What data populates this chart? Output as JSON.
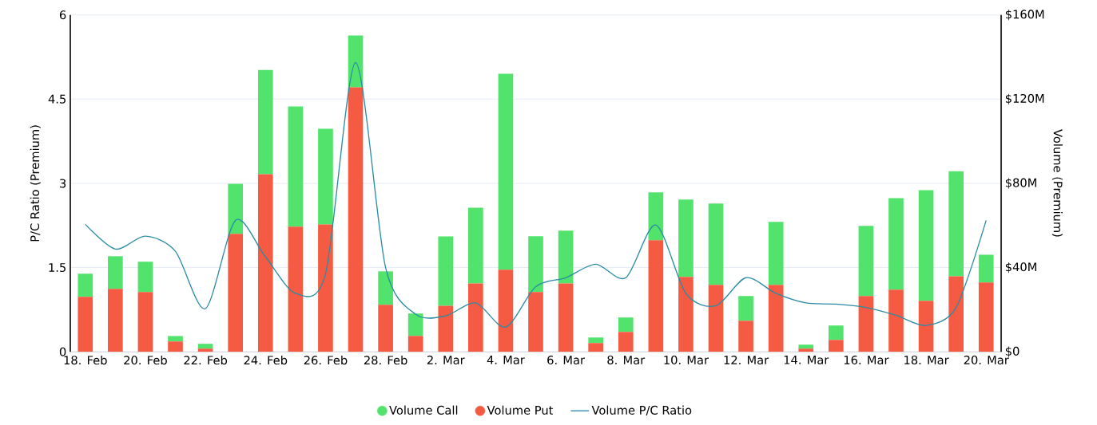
{
  "chart_data": {
    "type": "bar",
    "stacked": true,
    "ylabel": "P/C Ratio (Premium)",
    "y2label": "Volume (Premium)",
    "categories": [
      "18. Feb",
      null,
      "20. Feb",
      null,
      "22. Feb",
      null,
      "24. Feb",
      null,
      "26. Feb",
      null,
      "28. Feb",
      null,
      "2. Mar",
      null,
      "4. Mar",
      null,
      "6. Mar",
      null,
      "8. Mar",
      null,
      "10. Mar",
      null,
      "12. Mar",
      null,
      "14. Mar",
      null,
      "16. Mar",
      null,
      "18. Mar",
      null,
      "20. Mar"
    ],
    "series": [
      {
        "name": "Volume Put",
        "color": "#f45b42",
        "axis": "y2",
        "values": [
          26.1,
          29.9,
          28.4,
          4.9,
          1.5,
          56,
          84.3,
          59.4,
          60.5,
          125.6,
          22.3,
          7.6,
          21.9,
          32.5,
          39,
          28.4,
          32.5,
          4.2,
          9.5,
          53,
          35.6,
          31.8,
          14.8,
          31.8,
          1.5,
          5.7,
          26.5,
          29.5,
          24.2,
          35.9,
          32.9
        ]
      },
      {
        "name": "Volume Call",
        "color": "#52e36c",
        "axis": "y2",
        "values": [
          11.0,
          15.5,
          14.4,
          2.6,
          2.3,
          23.8,
          49.5,
          57.1,
          45.4,
          24.6,
          15.9,
          10.6,
          32.9,
          35.9,
          93,
          26.5,
          25,
          2.6,
          6.8,
          22.7,
          36.7,
          38.6,
          11.7,
          29.9,
          1.9,
          6.8,
          33.3,
          43.5,
          52.6,
          49.9,
          13.2
        ]
      },
      {
        "name": "Volume P/C Ratio",
        "type": "line",
        "color": "#2a8ca5",
        "axis": "y",
        "values": [
          2.27,
          1.83,
          2.06,
          1.79,
          0.77,
          2.34,
          1.69,
          1.04,
          1.39,
          5.15,
          1.5,
          0.67,
          0.64,
          0.87,
          0.44,
          1.16,
          1.32,
          1.56,
          1.32,
          2.26,
          1.04,
          0.82,
          1.32,
          1.04,
          0.87,
          0.85,
          0.79,
          0.65,
          0.47,
          0.79,
          2.34
        ]
      }
    ],
    "ylim": [
      0,
      6
    ],
    "yticks": [
      0,
      1.5,
      3,
      4.5,
      6
    ],
    "y2lim": [
      0,
      160
    ],
    "y2ticks": [
      {
        "value": 0,
        "label": "$0"
      },
      {
        "value": 40,
        "label": "$40M"
      },
      {
        "value": 80,
        "label": "$80M"
      },
      {
        "value": 120,
        "label": "$120M"
      },
      {
        "value": 160,
        "label": "$160M"
      }
    ],
    "grid": "y",
    "legend": "bottom"
  }
}
